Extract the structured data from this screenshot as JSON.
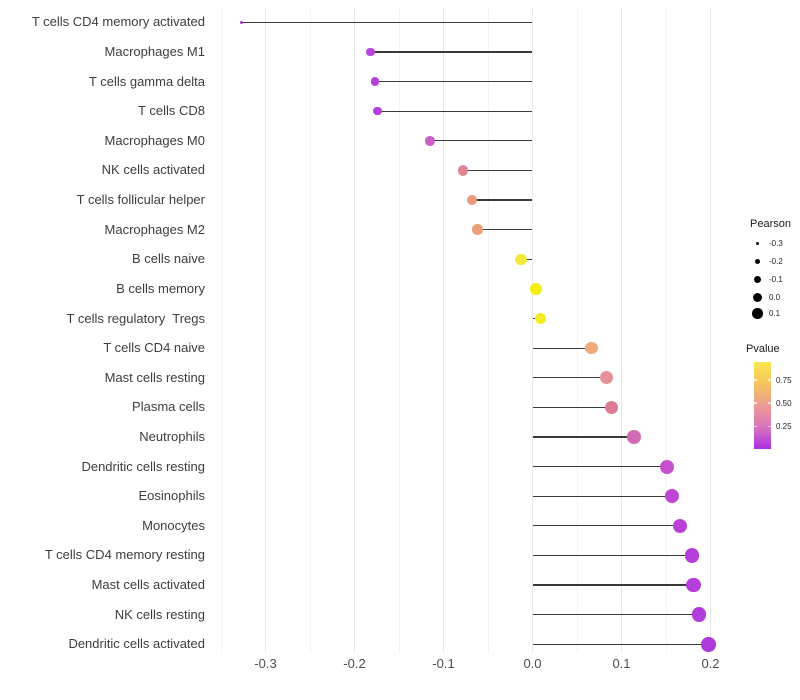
{
  "chart_data": {
    "type": "scatter",
    "subtype": "lollipop",
    "title": "",
    "xlabel": "",
    "ylabel": "",
    "grid": "vertical-only",
    "xlim": [
      -0.3625,
      0.23
    ],
    "x_ticks": [
      {
        "label": "-0.3",
        "value": -0.3
      },
      {
        "label": "-0.2",
        "value": -0.2
      },
      {
        "label": "-0.1",
        "value": -0.1
      },
      {
        "label": "0.0",
        "value": 0.0
      },
      {
        "label": "0.1",
        "value": 0.1
      },
      {
        "label": "0.2",
        "value": 0.2
      }
    ],
    "points": [
      {
        "label": "T cells CD4 memory activated",
        "pearson": -0.327,
        "color": "#A62FD0"
      },
      {
        "label": "Macrophages M1",
        "pearson": -0.182,
        "color": "#B845DC"
      },
      {
        "label": "T cells gamma delta",
        "pearson": -0.177,
        "color": "#B440DA"
      },
      {
        "label": "T cells CD8",
        "pearson": -0.174,
        "color": "#B23EDA"
      },
      {
        "label": "Macrophages M0",
        "pearson": -0.115,
        "color": "#C85EC6"
      },
      {
        "label": "NK cells activated",
        "pearson": -0.078,
        "color": "#DE8792"
      },
      {
        "label": "T cells follicular helper",
        "pearson": -0.068,
        "color": "#E89B7C"
      },
      {
        "label": "Macrophages M2",
        "pearson": -0.062,
        "color": "#E6A17A"
      },
      {
        "label": "B cells naive",
        "pearson": -0.013,
        "color": "#F2E93B"
      },
      {
        "label": "B cells memory",
        "pearson": 0.004,
        "color": "#F6EE12"
      },
      {
        "label": "T cells regulatory  Tregs",
        "pearson": 0.009,
        "color": "#F4EC22"
      },
      {
        "label": "T cells CD4 naive",
        "pearson": 0.066,
        "color": "#EFAA79"
      },
      {
        "label": "Mast cells resting",
        "pearson": 0.083,
        "color": "#E8909A"
      },
      {
        "label": "Plasma cells",
        "pearson": 0.089,
        "color": "#DE7A93"
      },
      {
        "label": "Neutrophils",
        "pearson": 0.114,
        "color": "#D16CB4"
      },
      {
        "label": "Dendritic cells resting",
        "pearson": 0.151,
        "color": "#C450D0"
      },
      {
        "label": "Eosinophils",
        "pearson": 0.157,
        "color": "#BE46D5"
      },
      {
        "label": "Monocytes",
        "pearson": 0.166,
        "color": "#B941D8"
      },
      {
        "label": "T cells CD4 memory resting",
        "pearson": 0.179,
        "color": "#B53DDA"
      },
      {
        "label": "Mast cells activated",
        "pearson": 0.181,
        "color": "#B53DDA"
      },
      {
        "label": "NK cells resting",
        "pearson": 0.187,
        "color": "#B23BDB"
      },
      {
        "label": "Dendritic cells activated",
        "pearson": 0.198,
        "color": "#AD3BD7"
      }
    ],
    "legend_size": {
      "title": "Pearson",
      "items": [
        {
          "label": "-0.3",
          "diameter": 3.6
        },
        {
          "label": "-0.2",
          "diameter": 5.6
        },
        {
          "label": "-0.1",
          "diameter": 7.4
        },
        {
          "label": "0.0",
          "diameter": 9.0
        },
        {
          "label": "0.1",
          "diameter": 10.2
        }
      ],
      "dot_color": "#000000"
    },
    "legend_color": {
      "title": "Pvalue",
      "tick_labels": [
        "0.75",
        "0.50",
        "0.25"
      ],
      "gradient_top_to_bottom": [
        "#F9E64E",
        "#F5C45E",
        "#EC9C92",
        "#D873BE",
        "#AB2FE2"
      ]
    },
    "segment_color": "#3a3a3a"
  }
}
